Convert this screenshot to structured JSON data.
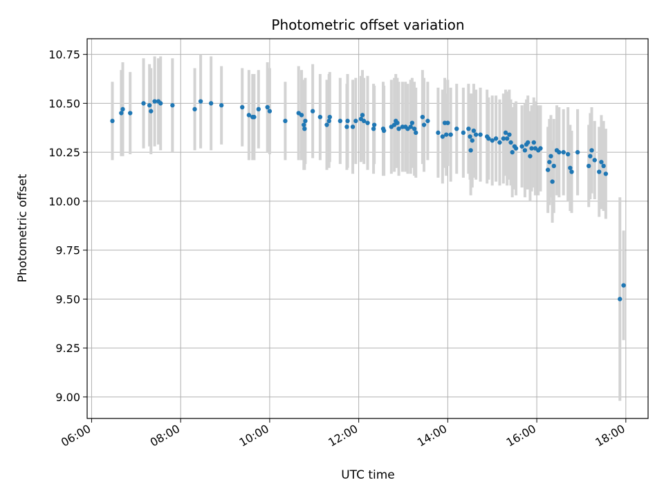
{
  "chart_data": {
    "type": "scatter",
    "title": "Photometric offset variation",
    "xlabel": "UTC time",
    "ylabel": "Photometric offset",
    "x_unit": "hours UTC",
    "xlim": [
      "05:54",
      "18:30"
    ],
    "ylim": [
      8.89,
      10.83
    ],
    "x_ticks": [
      "06:00",
      "08:00",
      "10:00",
      "12:00",
      "14:00",
      "16:00",
      "18:00"
    ],
    "y_ticks": [
      "9.00",
      "9.25",
      "9.50",
      "9.75",
      "10.00",
      "10.25",
      "10.50",
      "10.75"
    ],
    "grid": true,
    "series": [
      {
        "marker_color": "#1f77b4",
        "errorbar_color": "#d3d3d3",
        "points": [
          {
            "x": "06:28",
            "y": 10.41,
            "err": 0.2
          },
          {
            "x": "06:40",
            "y": 10.45,
            "err": 0.22
          },
          {
            "x": "06:42",
            "y": 10.47,
            "err": 0.24
          },
          {
            "x": "06:52",
            "y": 10.45,
            "err": 0.21
          },
          {
            "x": "07:10",
            "y": 10.5,
            "err": 0.23
          },
          {
            "x": "07:18",
            "y": 10.49,
            "err": 0.21
          },
          {
            "x": "07:20",
            "y": 10.46,
            "err": 0.22
          },
          {
            "x": "07:25",
            "y": 10.51,
            "err": 0.23
          },
          {
            "x": "07:30",
            "y": 10.51,
            "err": 0.22
          },
          {
            "x": "07:33",
            "y": 10.5,
            "err": 0.24
          },
          {
            "x": "07:49",
            "y": 10.49,
            "err": 0.24
          },
          {
            "x": "08:19",
            "y": 10.47,
            "err": 0.21
          },
          {
            "x": "08:27",
            "y": 10.51,
            "err": 0.24
          },
          {
            "x": "08:41",
            "y": 10.5,
            "err": 0.24
          },
          {
            "x": "08:55",
            "y": 10.49,
            "err": 0.2
          },
          {
            "x": "09:23",
            "y": 10.48,
            "err": 0.2
          },
          {
            "x": "09:32",
            "y": 10.44,
            "err": 0.23
          },
          {
            "x": "09:37",
            "y": 10.43,
            "err": 0.22
          },
          {
            "x": "09:39",
            "y": 10.43,
            "err": 0.22
          },
          {
            "x": "09:45",
            "y": 10.47,
            "err": 0.2
          },
          {
            "x": "09:57",
            "y": 10.48,
            "err": 0.23
          },
          {
            "x": "10:00",
            "y": 10.46,
            "err": 0.22
          },
          {
            "x": "10:21",
            "y": 10.41,
            "err": 0.2
          },
          {
            "x": "10:39",
            "y": 10.45,
            "err": 0.24
          },
          {
            "x": "10:43",
            "y": 10.44,
            "err": 0.23
          },
          {
            "x": "10:46",
            "y": 10.39,
            "err": 0.23
          },
          {
            "x": "10:47",
            "y": 10.37,
            "err": 0.21
          },
          {
            "x": "10:48",
            "y": 10.41,
            "err": 0.22
          },
          {
            "x": "10:58",
            "y": 10.46,
            "err": 0.24
          },
          {
            "x": "11:08",
            "y": 10.43,
            "err": 0.22
          },
          {
            "x": "11:17",
            "y": 10.39,
            "err": 0.23
          },
          {
            "x": "11:20",
            "y": 10.41,
            "err": 0.24
          },
          {
            "x": "11:21",
            "y": 10.43,
            "err": 0.23
          },
          {
            "x": "11:35",
            "y": 10.41,
            "err": 0.22
          },
          {
            "x": "11:44",
            "y": 10.38,
            "err": 0.22
          },
          {
            "x": "11:45",
            "y": 10.41,
            "err": 0.24
          },
          {
            "x": "11:52",
            "y": 10.38,
            "err": 0.24
          },
          {
            "x": "11:56",
            "y": 10.41,
            "err": 0.22
          },
          {
            "x": "12:03",
            "y": 10.42,
            "err": 0.22
          },
          {
            "x": "12:05",
            "y": 10.44,
            "err": 0.23
          },
          {
            "x": "12:07",
            "y": 10.41,
            "err": 0.22
          },
          {
            "x": "12:12",
            "y": 10.4,
            "err": 0.24
          },
          {
            "x": "12:20",
            "y": 10.37,
            "err": 0.23
          },
          {
            "x": "12:21",
            "y": 10.39,
            "err": 0.2
          },
          {
            "x": "12:33",
            "y": 10.37,
            "err": 0.24
          },
          {
            "x": "12:34",
            "y": 10.36,
            "err": 0.23
          },
          {
            "x": "12:44",
            "y": 10.38,
            "err": 0.24
          },
          {
            "x": "12:48",
            "y": 10.39,
            "err": 0.24
          },
          {
            "x": "12:50",
            "y": 10.41,
            "err": 0.24
          },
          {
            "x": "12:52",
            "y": 10.4,
            "err": 0.23
          },
          {
            "x": "12:54",
            "y": 10.37,
            "err": 0.24
          },
          {
            "x": "12:59",
            "y": 10.38,
            "err": 0.23
          },
          {
            "x": "13:03",
            "y": 10.38,
            "err": 0.23
          },
          {
            "x": "13:06",
            "y": 10.37,
            "err": 0.23
          },
          {
            "x": "13:10",
            "y": 10.38,
            "err": 0.24
          },
          {
            "x": "13:12",
            "y": 10.4,
            "err": 0.23
          },
          {
            "x": "13:15",
            "y": 10.37,
            "err": 0.24
          },
          {
            "x": "13:17",
            "y": 10.35,
            "err": 0.23
          },
          {
            "x": "13:26",
            "y": 10.43,
            "err": 0.24
          },
          {
            "x": "13:28",
            "y": 10.39,
            "err": 0.24
          },
          {
            "x": "13:33",
            "y": 10.41,
            "err": 0.2
          },
          {
            "x": "13:47",
            "y": 10.35,
            "err": 0.23
          },
          {
            "x": "13:53",
            "y": 10.33,
            "err": 0.24
          },
          {
            "x": "13:56",
            "y": 10.4,
            "err": 0.23
          },
          {
            "x": "13:58",
            "y": 10.34,
            "err": 0.21
          },
          {
            "x": "14:00",
            "y": 10.4,
            "err": 0.22
          },
          {
            "x": "14:04",
            "y": 10.34,
            "err": 0.24
          },
          {
            "x": "14:12",
            "y": 10.37,
            "err": 0.23
          },
          {
            "x": "14:21",
            "y": 10.35,
            "err": 0.23
          },
          {
            "x": "14:28",
            "y": 10.37,
            "err": 0.23
          },
          {
            "x": "14:30",
            "y": 10.33,
            "err": 0.22
          },
          {
            "x": "14:31",
            "y": 10.26,
            "err": 0.23
          },
          {
            "x": "14:33",
            "y": 10.31,
            "err": 0.24
          },
          {
            "x": "14:35",
            "y": 10.36,
            "err": 0.24
          },
          {
            "x": "14:38",
            "y": 10.34,
            "err": 0.23
          },
          {
            "x": "14:44",
            "y": 10.34,
            "err": 0.24
          },
          {
            "x": "14:53",
            "y": 10.33,
            "err": 0.24
          },
          {
            "x": "14:55",
            "y": 10.32,
            "err": 0.21
          },
          {
            "x": "15:00",
            "y": 10.31,
            "err": 0.23
          },
          {
            "x": "15:05",
            "y": 10.32,
            "err": 0.22
          },
          {
            "x": "15:10",
            "y": 10.3,
            "err": 0.22
          },
          {
            "x": "15:15",
            "y": 10.32,
            "err": 0.23
          },
          {
            "x": "15:18",
            "y": 10.35,
            "err": 0.22
          },
          {
            "x": "15:20",
            "y": 10.32,
            "err": 0.24
          },
          {
            "x": "15:23",
            "y": 10.34,
            "err": 0.23
          },
          {
            "x": "15:25",
            "y": 10.3,
            "err": 0.22
          },
          {
            "x": "15:27",
            "y": 10.25,
            "err": 0.23
          },
          {
            "x": "15:30",
            "y": 10.28,
            "err": 0.22
          },
          {
            "x": "15:32",
            "y": 10.27,
            "err": 0.24
          },
          {
            "x": "15:40",
            "y": 10.28,
            "err": 0.21
          },
          {
            "x": "15:44",
            "y": 10.26,
            "err": 0.24
          },
          {
            "x": "15:46",
            "y": 10.29,
            "err": 0.23
          },
          {
            "x": "15:48",
            "y": 10.3,
            "err": 0.24
          },
          {
            "x": "15:51",
            "y": 10.23,
            "err": 0.23
          },
          {
            "x": "15:53",
            "y": 10.27,
            "err": 0.22
          },
          {
            "x": "15:56",
            "y": 10.3,
            "err": 0.23
          },
          {
            "x": "15:58",
            "y": 10.27,
            "err": 0.24
          },
          {
            "x": "16:02",
            "y": 10.26,
            "err": 0.23
          },
          {
            "x": "16:05",
            "y": 10.27,
            "err": 0.22
          },
          {
            "x": "16:15",
            "y": 10.16,
            "err": 0.22
          },
          {
            "x": "16:17",
            "y": 10.2,
            "err": 0.22
          },
          {
            "x": "16:19",
            "y": 10.23,
            "err": 0.21
          },
          {
            "x": "16:21",
            "y": 10.1,
            "err": 0.21
          },
          {
            "x": "16:23",
            "y": 10.18,
            "err": 0.24
          },
          {
            "x": "16:27",
            "y": 10.26,
            "err": 0.23
          },
          {
            "x": "16:30",
            "y": 10.25,
            "err": 0.23
          },
          {
            "x": "16:36",
            "y": 10.25,
            "err": 0.22
          },
          {
            "x": "16:42",
            "y": 10.24,
            "err": 0.24
          },
          {
            "x": "16:45",
            "y": 10.17,
            "err": 0.22
          },
          {
            "x": "16:47",
            "y": 10.15,
            "err": 0.21
          },
          {
            "x": "16:55",
            "y": 10.25,
            "err": 0.22
          },
          {
            "x": "17:10",
            "y": 10.18,
            "err": 0.21
          },
          {
            "x": "17:12",
            "y": 10.23,
            "err": 0.22
          },
          {
            "x": "17:14",
            "y": 10.26,
            "err": 0.22
          },
          {
            "x": "17:18",
            "y": 10.21,
            "err": 0.2
          },
          {
            "x": "17:24",
            "y": 10.15,
            "err": 0.23
          },
          {
            "x": "17:27",
            "y": 10.2,
            "err": 0.24
          },
          {
            "x": "17:30",
            "y": 10.18,
            "err": 0.23
          },
          {
            "x": "17:33",
            "y": 10.14,
            "err": 0.23
          },
          {
            "x": "17:52",
            "y": 9.5,
            "err": 0.52
          },
          {
            "x": "17:57",
            "y": 9.57,
            "err": 0.28
          }
        ]
      }
    ]
  }
}
